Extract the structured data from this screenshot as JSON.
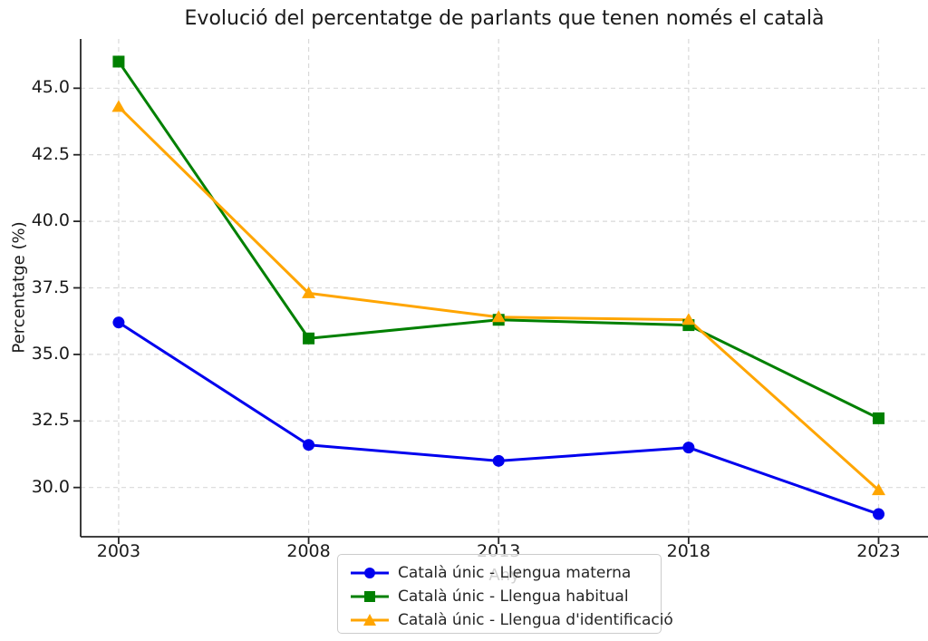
{
  "chart_data": {
    "type": "line",
    "title": "Evolució del percentatge de parlants que tenen només el català",
    "xlabel": "Any",
    "ylabel": "Percentatge (%)",
    "x": [
      2003,
      2008,
      2013,
      2018,
      2023
    ],
    "xtick_labels": [
      "2003",
      "2008",
      "2013",
      "2018",
      "2023"
    ],
    "yticks": [
      30.0,
      32.5,
      35.0,
      37.5,
      40.0,
      42.5,
      45.0
    ],
    "ytick_labels": [
      "30.0",
      "32.5",
      "35.0",
      "37.5",
      "40.0",
      "42.5",
      "45.0"
    ],
    "xlim": [
      2002,
      2024.3
    ],
    "ylim": [
      28.15,
      46.85
    ],
    "grid": true,
    "grid_style": "dashed",
    "legend_position": "bottom-center",
    "series": [
      {
        "name": "Català únic - Llengua materna",
        "color": "#0000ee",
        "marker": "circle",
        "values": [
          36.2,
          31.6,
          31.0,
          31.5,
          29.0
        ]
      },
      {
        "name": "Català únic - Llengua habitual",
        "color": "#008000",
        "marker": "square",
        "values": [
          46.0,
          35.6,
          36.3,
          36.1,
          32.6
        ]
      },
      {
        "name": "Català únic - Llengua d'identificació",
        "color": "#ffa500",
        "marker": "triangle",
        "values": [
          44.3,
          37.3,
          36.4,
          36.3,
          29.9
        ]
      }
    ],
    "colors": {
      "spine": "#262626",
      "grid": "#d9d9d9",
      "text": "#1a1a1a"
    }
  }
}
